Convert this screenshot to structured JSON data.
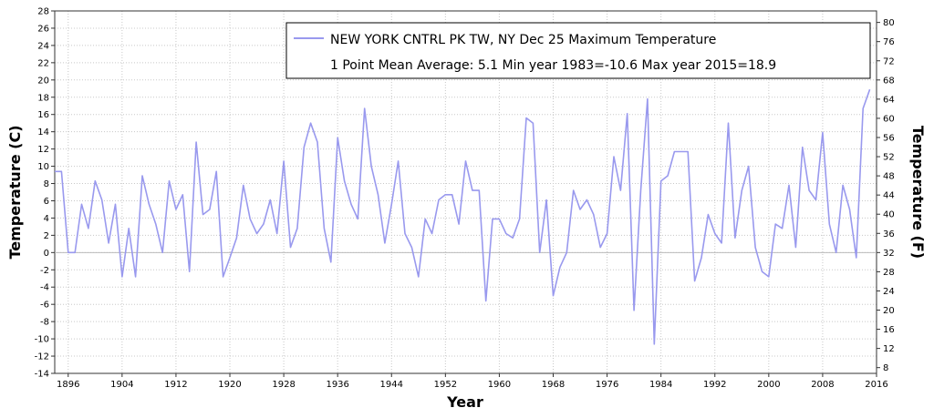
{
  "chart_data": {
    "type": "line",
    "xlabel": "Year",
    "ylabel_left": "Temperature (C)",
    "ylabel_right": "Temperature (F)",
    "xlim": [
      1894,
      2016
    ],
    "ylim": [
      -14,
      28
    ],
    "ylim_right": [
      6.8,
      82.4
    ],
    "x_ticks": [
      1896,
      1904,
      1912,
      1920,
      1928,
      1936,
      1944,
      1952,
      1960,
      1968,
      1976,
      1984,
      1992,
      2000,
      2008,
      2016
    ],
    "y_ticks_left": [
      -14,
      -12,
      -10,
      -8,
      -6,
      -4,
      -2,
      0,
      2,
      4,
      6,
      8,
      10,
      12,
      14,
      16,
      18,
      20,
      22,
      24,
      26,
      28
    ],
    "y_ticks_right": [
      8,
      12,
      16,
      20,
      24,
      28,
      32,
      36,
      40,
      44,
      48,
      52,
      56,
      60,
      64,
      68,
      72,
      76,
      80
    ],
    "grid": true,
    "zero_line": true,
    "legend": {
      "placement": "top-right",
      "line1": "NEW YORK CNTRL PK TW, NY  Dec 25  Maximum Temperature",
      "line2": "1 Point Mean  Average: 5.1  Min year 1983=-10.6  Max year 2015=18.9"
    },
    "series": [
      {
        "name": "NEW YORK CNTRL PK TW, NY  Dec 25  Maximum Temperature",
        "color": "#9999ee",
        "x": [
          1894,
          1895,
          1896,
          1897,
          1898,
          1899,
          1900,
          1901,
          1902,
          1903,
          1904,
          1905,
          1906,
          1907,
          1908,
          1909,
          1910,
          1911,
          1912,
          1913,
          1914,
          1915,
          1916,
          1917,
          1918,
          1919,
          1920,
          1921,
          1922,
          1923,
          1924,
          1925,
          1926,
          1927,
          1928,
          1929,
          1930,
          1931,
          1932,
          1933,
          1934,
          1935,
          1936,
          1937,
          1938,
          1939,
          1940,
          1941,
          1942,
          1943,
          1944,
          1945,
          1946,
          1947,
          1948,
          1949,
          1950,
          1951,
          1952,
          1953,
          1954,
          1955,
          1956,
          1957,
          1958,
          1959,
          1960,
          1961,
          1962,
          1963,
          1964,
          1965,
          1966,
          1967,
          1968,
          1969,
          1970,
          1971,
          1972,
          1973,
          1974,
          1975,
          1976,
          1977,
          1978,
          1979,
          1980,
          1981,
          1982,
          1983,
          1984,
          1985,
          1986,
          1987,
          1988,
          1989,
          1990,
          1991,
          1992,
          1993,
          1994,
          1995,
          1996,
          1997,
          1998,
          1999,
          2000,
          2001,
          2002,
          2003,
          2004,
          2005,
          2006,
          2007,
          2008,
          2009,
          2010,
          2011,
          2012,
          2013,
          2014,
          2015
        ],
        "y": [
          9.4,
          9.4,
          0,
          0,
          5.6,
          2.8,
          8.3,
          6.1,
          1.1,
          5.6,
          -2.8,
          2.8,
          -2.8,
          8.9,
          5.6,
          3.3,
          0,
          8.3,
          5,
          6.7,
          -2.2,
          12.8,
          4.4,
          5,
          9.4,
          -2.8,
          -0.6,
          1.7,
          7.8,
          3.9,
          2.2,
          3.3,
          6.1,
          2.2,
          10.6,
          0.6,
          2.8,
          12.2,
          15,
          12.8,
          2.8,
          -1.1,
          13.3,
          8.3,
          5.6,
          3.9,
          16.7,
          10,
          6.7,
          1.1,
          5.6,
          10.6,
          2.2,
          0.6,
          -2.8,
          3.9,
          2.2,
          6.1,
          6.7,
          6.7,
          3.3,
          10.6,
          7.2,
          7.2,
          -5.6,
          3.9,
          3.9,
          2.2,
          1.7,
          3.9,
          15.6,
          15,
          0,
          6.1,
          -5,
          -1.7,
          0,
          7.2,
          5,
          6.1,
          4.4,
          0.6,
          2.2,
          11.1,
          7.2,
          16.1,
          -6.7,
          7.2,
          17.8,
          -10.6,
          8.3,
          8.9,
          11.7,
          11.7,
          11.7,
          -3.3,
          -0.6,
          4.4,
          2.2,
          1.1,
          15,
          1.7,
          7.2,
          10,
          0.6,
          -2.2,
          -2.8,
          3.3,
          2.8,
          7.8,
          0.6,
          12.2,
          7.2,
          6.1,
          13.9,
          3.3,
          0,
          7.8,
          5,
          -0.6,
          16.7,
          18.9
        ]
      }
    ]
  }
}
